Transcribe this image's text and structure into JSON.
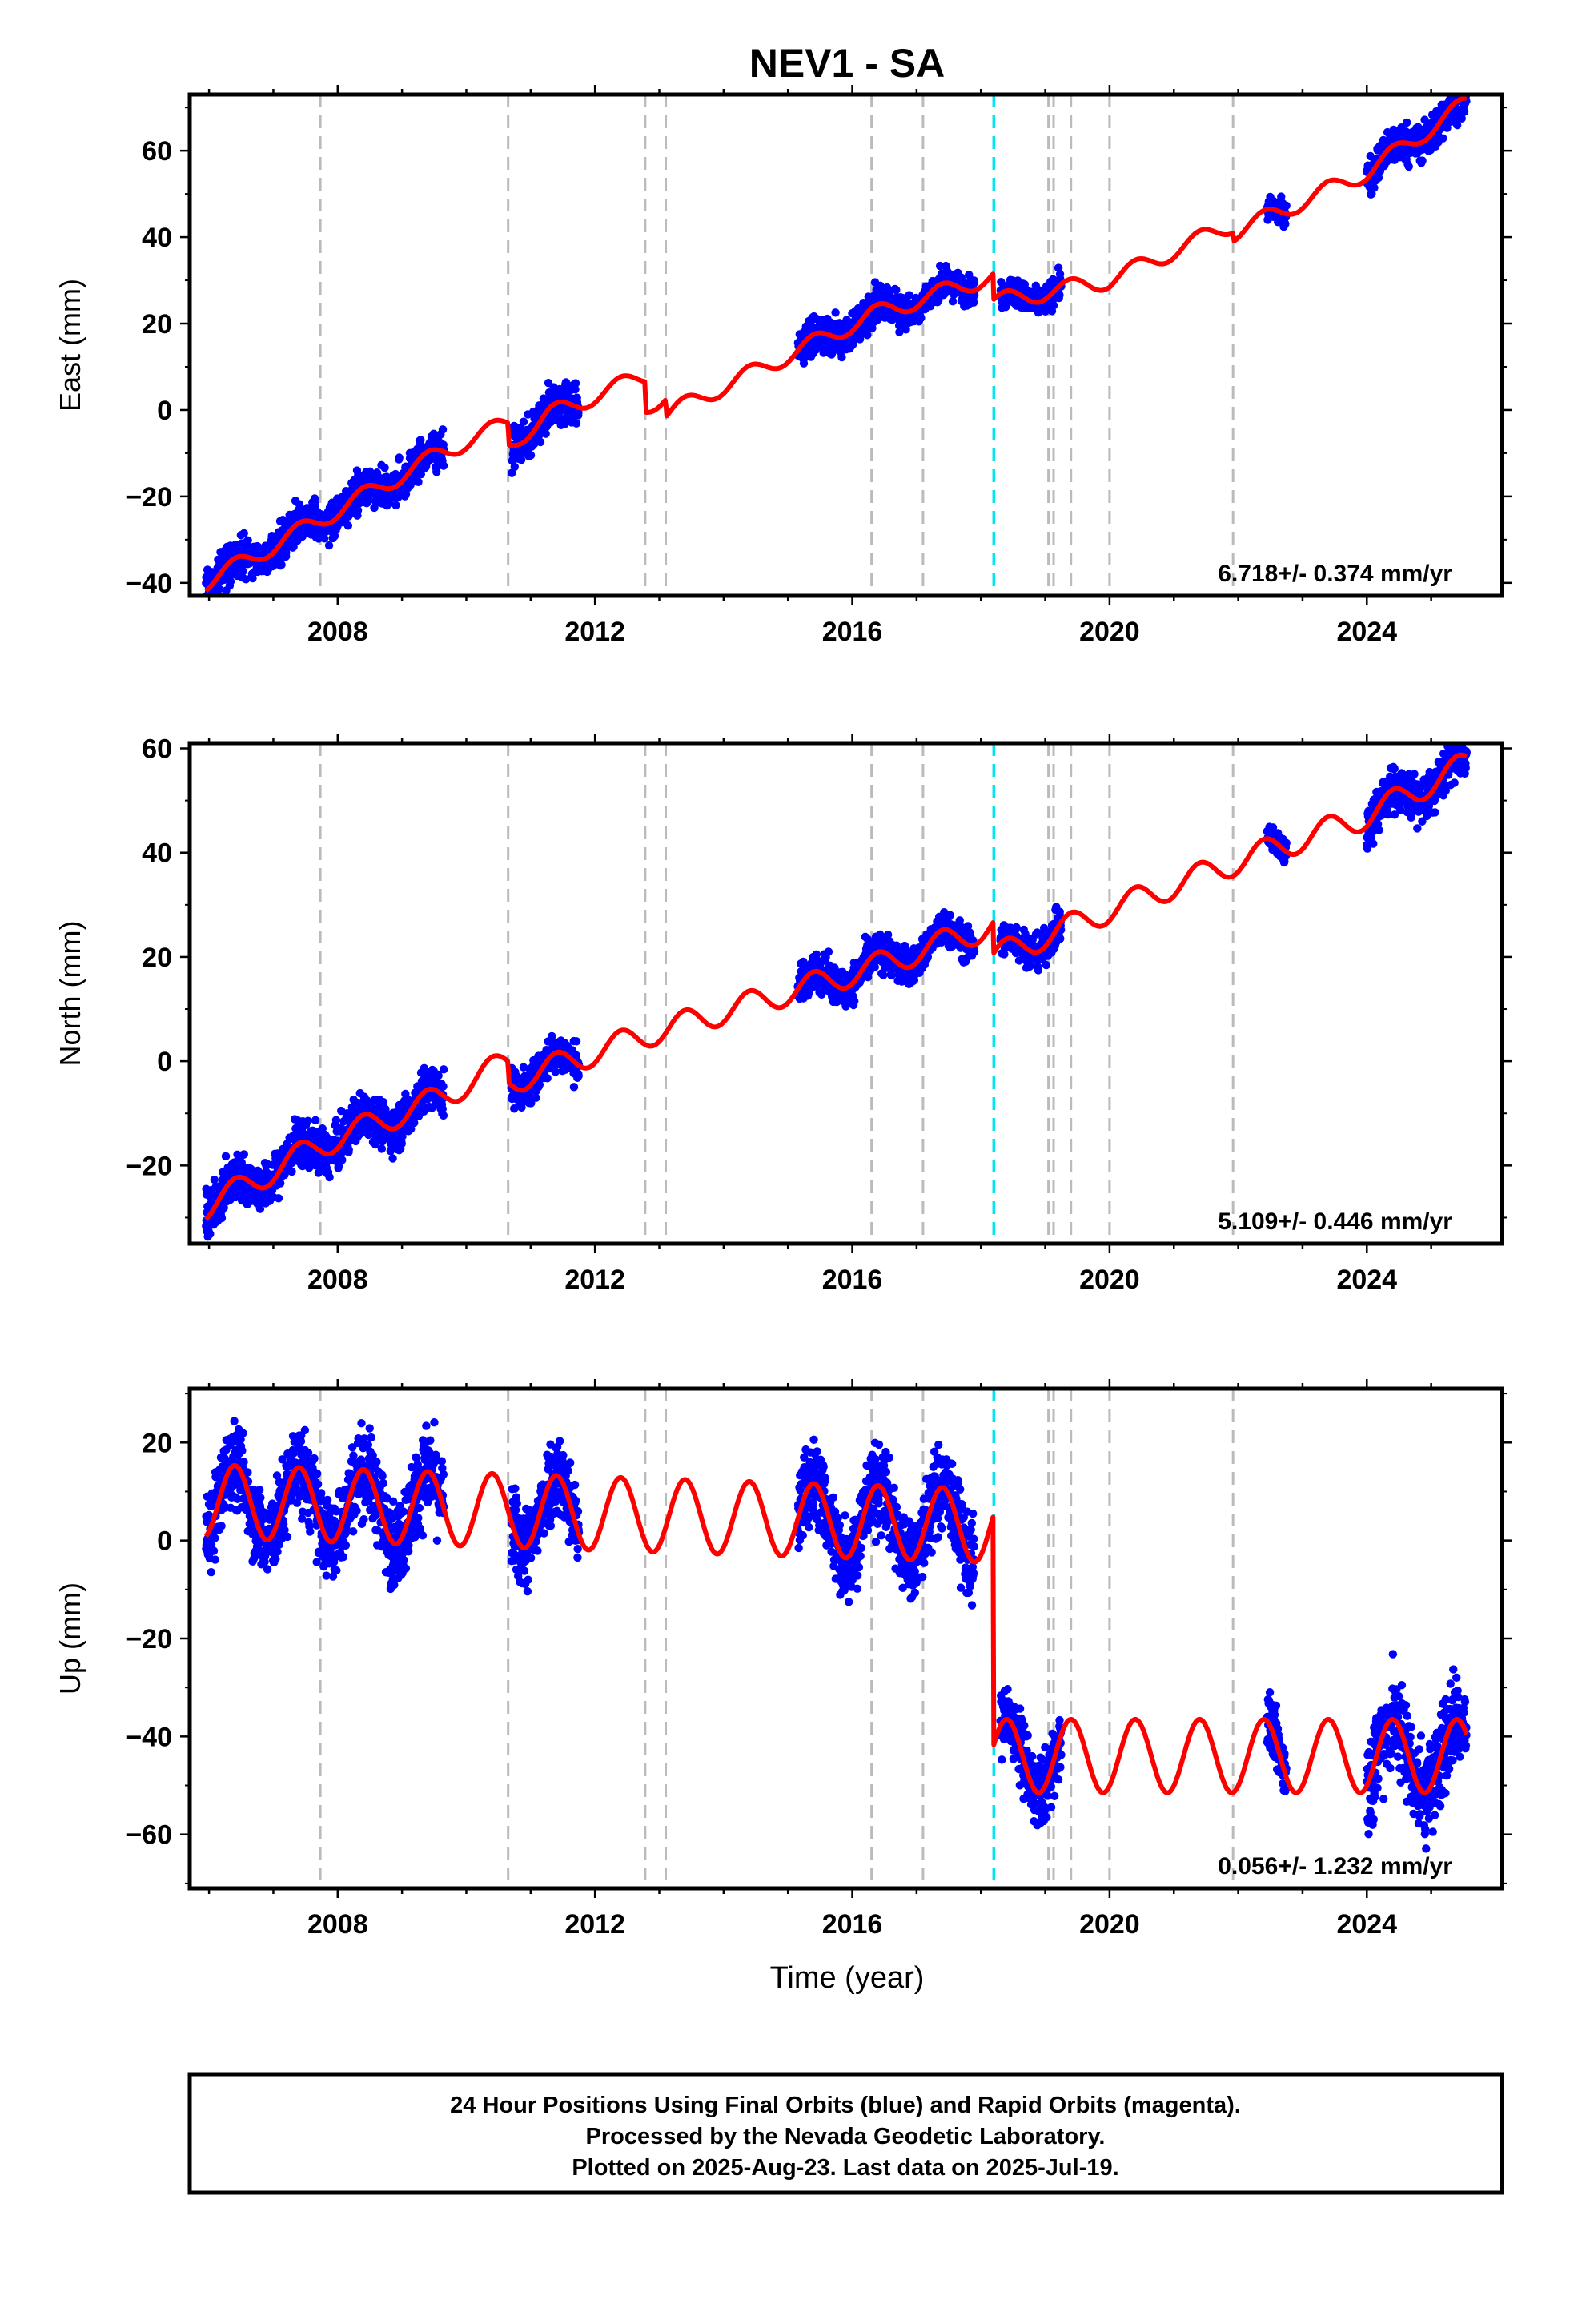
{
  "chart_data": {
    "type": "scatter",
    "title": "NEV1 - SA",
    "x_label": "Time (year)",
    "x_range": [
      2005.7,
      2026.1
    ],
    "x_ticks": [
      2008,
      2012,
      2016,
      2020,
      2024
    ],
    "gray_event_lines": [
      2007.73,
      2010.65,
      2012.78,
      2013.1,
      2016.3,
      2017.1,
      2019.05,
      2019.13,
      2019.4,
      2020.0,
      2021.92
    ],
    "cyan_event_line": 2018.2,
    "colors": {
      "final_orbits": "#0000ff",
      "model": "#ff0000",
      "gray_line": "#bbbbbb",
      "cyan_line": "#00e5ee"
    },
    "panels": [
      {
        "name": "east",
        "ylabel": "East (mm)",
        "ylim": [
          -43,
          73
        ],
        "yticks": [
          -40,
          -20,
          0,
          20,
          40,
          60
        ],
        "rate_text": "6.718+/- 0.374 mm/yr",
        "model_knots": [
          [
            2005.95,
            -40
          ],
          [
            2009.6,
            -10
          ],
          [
            2010.65,
            -3
          ],
          [
            2010.66,
            -8
          ],
          [
            2011.3,
            -1
          ],
          [
            2012.78,
            8
          ],
          [
            2012.79,
            1
          ],
          [
            2013.1,
            3
          ],
          [
            2013.11,
            -1
          ],
          [
            2016.3,
            22
          ],
          [
            2018.19,
            31
          ],
          [
            2018.2,
            25
          ],
          [
            2020.0,
            30
          ],
          [
            2021.92,
            43
          ],
          [
            2021.93,
            41
          ],
          [
            2024.0,
            55
          ],
          [
            2025.55,
            71
          ]
        ],
        "seasonal_amp": 2.0,
        "data_segments": [
          [
            2005.95,
            2009.65,
            3.0
          ],
          [
            2010.7,
            2011.75,
            3.0
          ],
          [
            2015.15,
            2016.9,
            3.0
          ],
          [
            2016.9,
            2017.9,
            2.2
          ],
          [
            2018.3,
            2019.25,
            2.2
          ],
          [
            2022.45,
            2022.75,
            1.8
          ],
          [
            2024.0,
            2025.55,
            3.0
          ]
        ]
      },
      {
        "name": "north",
        "ylabel": "North (mm)",
        "ylim": [
          -35,
          61
        ],
        "yticks": [
          -20,
          0,
          20,
          40,
          60
        ],
        "rate_text": "5.109+/- 0.446 mm/yr",
        "model_knots": [
          [
            2005.95,
            -28
          ],
          [
            2007.73,
            -16
          ],
          [
            2009.6,
            -7
          ],
          [
            2010.65,
            0
          ],
          [
            2010.66,
            -4
          ],
          [
            2012.78,
            5
          ],
          [
            2016.3,
            18
          ],
          [
            2018.19,
            26
          ],
          [
            2018.2,
            20
          ],
          [
            2020.0,
            29
          ],
          [
            2021.92,
            38
          ],
          [
            2024.0,
            47
          ],
          [
            2025.55,
            57
          ]
        ],
        "seasonal_amp": 2.5,
        "data_segments": [
          [
            2005.95,
            2009.65,
            3.0
          ],
          [
            2010.7,
            2011.75,
            2.5
          ],
          [
            2015.15,
            2016.9,
            2.5
          ],
          [
            2016.9,
            2017.9,
            2.2
          ],
          [
            2018.3,
            2019.25,
            2.2
          ],
          [
            2022.45,
            2022.75,
            1.8
          ],
          [
            2024.0,
            2025.55,
            3.0
          ]
        ]
      },
      {
        "name": "up",
        "ylabel": "Up (mm)",
        "ylim": [
          -71,
          31
        ],
        "yticks": [
          -60,
          -40,
          -20,
          0,
          20
        ],
        "rate_text": "0.056+/- 1.232 mm/yr",
        "model_knots": [
          [
            2005.95,
            8
          ],
          [
            2018.19,
            3
          ],
          [
            2018.2,
            -44
          ],
          [
            2025.55,
            -44
          ]
        ],
        "seasonal_amp": 7.5,
        "data_segments": [
          [
            2005.95,
            2009.65,
            6.0
          ],
          [
            2010.7,
            2011.75,
            6.0
          ],
          [
            2015.15,
            2016.9,
            6.0
          ],
          [
            2016.9,
            2017.9,
            6.0
          ],
          [
            2018.3,
            2019.25,
            5.0
          ],
          [
            2022.45,
            2022.75,
            4.0
          ],
          [
            2024.0,
            2025.55,
            7.0
          ]
        ]
      }
    ]
  },
  "caption": {
    "line1": "24 Hour Positions Using Final Orbits (blue) and Rapid Orbits (magenta).",
    "line2": "Processed by the Nevada Geodetic Laboratory.",
    "line3": "Plotted on 2025-Aug-23. Last data on 2025-Jul-19."
  }
}
